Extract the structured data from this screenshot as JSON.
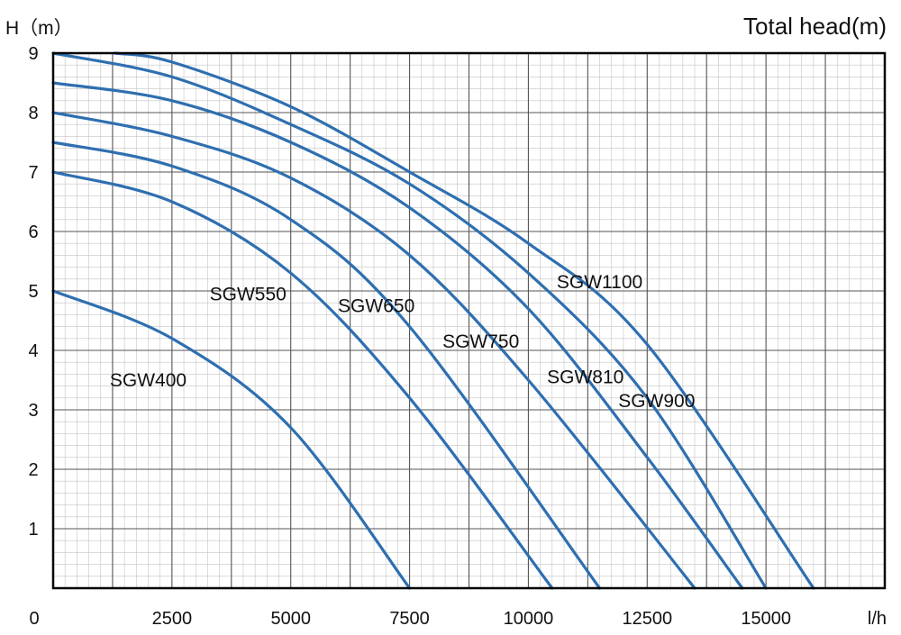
{
  "chart_data": {
    "type": "line",
    "title": "Total head(m)",
    "ylabel": "H（m）",
    "xlabel": "l/h",
    "xlim": [
      0,
      17500
    ],
    "ylim": [
      0,
      9
    ],
    "x_ticks": [
      0,
      2500,
      5000,
      7500,
      10000,
      12500,
      15000
    ],
    "y_ticks": [
      1,
      2,
      3,
      4,
      5,
      6,
      7,
      8,
      9
    ],
    "grid": true,
    "series_color": "#2e6fb0",
    "series": [
      {
        "name": "SGW400",
        "x": [
          0,
          2500,
          5000,
          7500
        ],
        "y": [
          5.0,
          4.2,
          2.7,
          0
        ]
      },
      {
        "name": "SGW550",
        "x": [
          0,
          2500,
          5000,
          7500,
          10500
        ],
        "y": [
          7.0,
          6.5,
          5.3,
          3.2,
          0
        ]
      },
      {
        "name": "SGW650",
        "x": [
          0,
          2500,
          5000,
          7500,
          11500
        ],
        "y": [
          7.5,
          7.1,
          6.2,
          4.4,
          0
        ]
      },
      {
        "name": "SGW750",
        "x": [
          0,
          2500,
          5000,
          7500,
          10000,
          13500
        ],
        "y": [
          8.0,
          7.6,
          6.9,
          5.6,
          3.5,
          0
        ]
      },
      {
        "name": "SGW810",
        "x": [
          0,
          2500,
          5000,
          7500,
          10000,
          12500,
          14500
        ],
        "y": [
          8.5,
          8.2,
          7.5,
          6.4,
          4.7,
          2.2,
          0
        ]
      },
      {
        "name": "SGW900",
        "x": [
          0,
          2500,
          5000,
          7500,
          10000,
          12500,
          15000
        ],
        "y": [
          9.0,
          8.6,
          7.8,
          6.8,
          5.3,
          3.2,
          0
        ]
      },
      {
        "name": "SGW1100",
        "x": [
          1300,
          2500,
          5000,
          7500,
          10000,
          12500,
          16000
        ],
        "y": [
          9.0,
          8.85,
          8.1,
          7.0,
          5.8,
          4.1,
          0
        ]
      }
    ],
    "labels": [
      {
        "text": "SGW400",
        "x": 2000,
        "y": 3.5
      },
      {
        "text": "SGW550",
        "x": 4100,
        "y": 4.95
      },
      {
        "text": "SGW650",
        "x": 6800,
        "y": 4.75
      },
      {
        "text": "SGW750",
        "x": 9000,
        "y": 4.15
      },
      {
        "text": "SGW810",
        "x": 11200,
        "y": 3.55
      },
      {
        "text": "SGW900",
        "x": 12700,
        "y": 3.15
      },
      {
        "text": "SGW1100",
        "x": 11500,
        "y": 5.15
      }
    ]
  }
}
